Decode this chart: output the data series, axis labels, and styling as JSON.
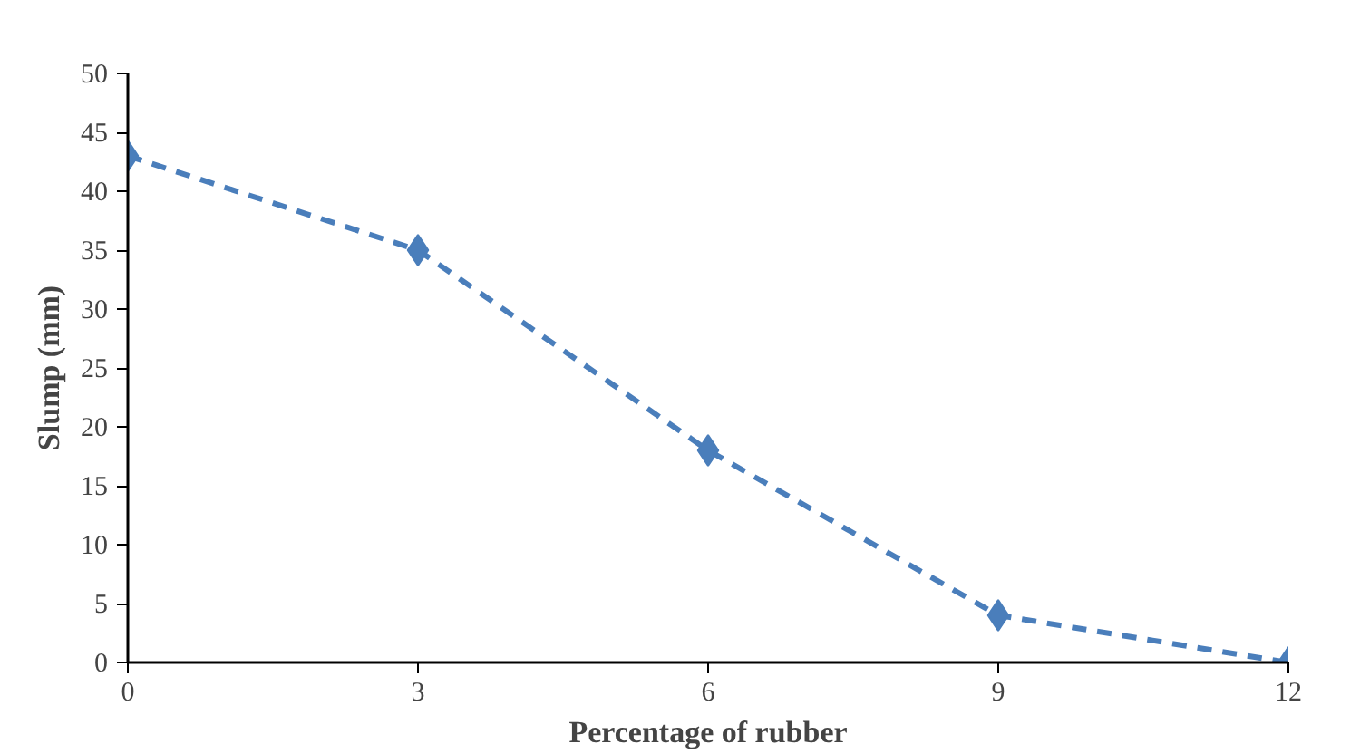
{
  "chart_data": {
    "type": "line",
    "xlabel": "Percentage of rubber",
    "ylabel": "Slump (mm)",
    "x": [
      0,
      3,
      6,
      9,
      12
    ],
    "series": [
      {
        "color": "#4a7ebb",
        "values": [
          43,
          35,
          18,
          4,
          0
        ]
      }
    ],
    "xlim": [
      0,
      12
    ],
    "xticks": [
      0,
      3,
      6,
      9,
      12
    ],
    "ylim": [
      0,
      50
    ],
    "yticks": [
      0,
      5,
      10,
      15,
      20,
      25,
      30,
      35,
      40,
      45,
      50
    ],
    "grid": false,
    "marker": "diamond",
    "line_style": "dashed"
  }
}
